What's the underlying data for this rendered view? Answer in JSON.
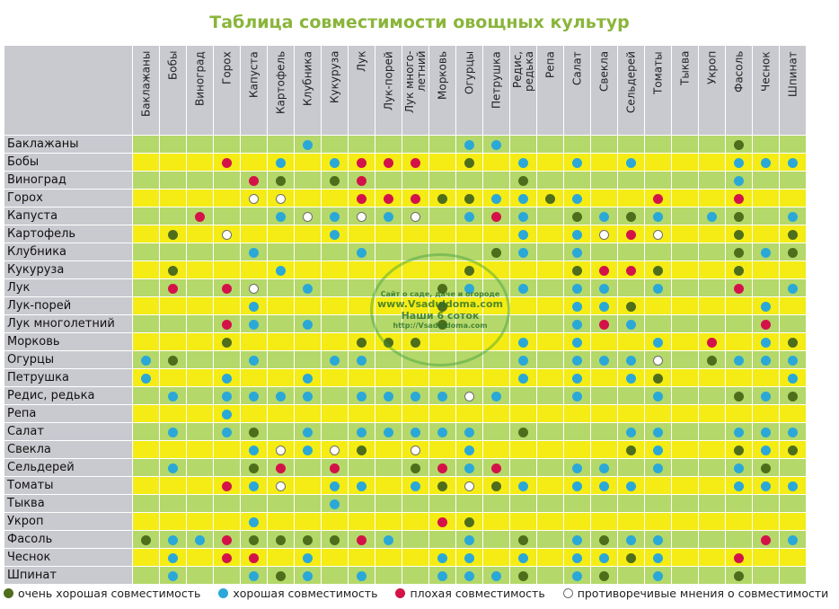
{
  "title": "Таблица совместимости овощных культур",
  "columns": [
    "Баклажаны",
    "Бобы",
    "Виноград",
    "Горох",
    "Капуста",
    "Картофель",
    "Клубника",
    "Кукуруза",
    "Лук",
    "Лук-порей",
    "Лук много-\nлетний",
    "Морковь",
    "Огурцы",
    "Петрушка",
    "Редис, редька",
    "Репа",
    "Салат",
    "Свекла",
    "Сельдерей",
    "Томаты",
    "Тыква",
    "Укроп",
    "Фасоль",
    "Чеснок",
    "Шпинат"
  ],
  "rows": [
    {
      "label": "Баклажаны",
      "cells": [
        "",
        "",
        "",
        "",
        "",
        "",
        "b",
        "",
        "",
        "",
        "",
        "",
        "b",
        "b",
        "",
        "",
        "",
        "",
        "",
        "",
        "",
        "",
        "g",
        "",
        ""
      ]
    },
    {
      "label": "Бобы",
      "cells": [
        "",
        "",
        "",
        "r",
        "",
        "b",
        "",
        "b",
        "r",
        "r",
        "r",
        "",
        "g",
        "",
        "b",
        "",
        "b",
        "",
        "b",
        "",
        "",
        "",
        "b",
        "b",
        "b"
      ]
    },
    {
      "label": "Виноград",
      "cells": [
        "",
        "",
        "",
        "",
        "r",
        "g",
        "",
        "g",
        "r",
        "",
        "",
        "",
        "",
        "",
        "g",
        "",
        "",
        "",
        "",
        "",
        "",
        "",
        "b",
        "",
        ""
      ]
    },
    {
      "label": "Горох",
      "cells": [
        "",
        "",
        "",
        "",
        "o",
        "o",
        "",
        "",
        "r",
        "r",
        "r",
        "g",
        "g",
        "b",
        "b",
        "g",
        "b",
        "",
        "",
        "r",
        "",
        "",
        "r",
        "",
        ""
      ]
    },
    {
      "label": "Капуста",
      "cells": [
        "",
        "",
        "r",
        "",
        "",
        "b",
        "o",
        "b",
        "o",
        "b",
        "o",
        "",
        "b",
        "r",
        "b",
        "",
        "g",
        "b",
        "g",
        "b",
        "",
        "b",
        "g",
        "",
        "b"
      ]
    },
    {
      "label": "Картофель",
      "cells": [
        "",
        "g",
        "",
        "o",
        "",
        "",
        "",
        "b",
        "",
        "",
        "",
        "",
        "",
        "",
        "b",
        "",
        "b",
        "o",
        "r",
        "o",
        "",
        "",
        "g",
        "",
        "g"
      ]
    },
    {
      "label": "Клубника",
      "cells": [
        "",
        "",
        "",
        "",
        "b",
        "",
        "",
        "",
        "b",
        "",
        "",
        "",
        "",
        "g",
        "b",
        "",
        "b",
        "",
        "",
        "",
        "",
        "",
        "g",
        "b",
        "g"
      ]
    },
    {
      "label": "Кукуруза",
      "cells": [
        "",
        "g",
        "",
        "",
        "",
        "b",
        "",
        "",
        "",
        "",
        "",
        "",
        "g",
        "",
        "",
        "",
        "g",
        "r",
        "r",
        "g",
        "",
        "",
        "g",
        "",
        ""
      ]
    },
    {
      "label": "Лук",
      "cells": [
        "",
        "r",
        "",
        "r",
        "o",
        "",
        "b",
        "",
        "",
        "",
        "",
        "g",
        "b",
        "",
        "b",
        "",
        "b",
        "b",
        "",
        "b",
        "",
        "",
        "r",
        "",
        "b"
      ]
    },
    {
      "label": "Лук-порей",
      "cells": [
        "",
        "",
        "",
        "",
        "b",
        "",
        "",
        "",
        "",
        "",
        "",
        "g",
        "",
        "",
        "",
        "",
        "b",
        "b",
        "g",
        "",
        "",
        "",
        "",
        "b",
        ""
      ]
    },
    {
      "label": "Лук многолетний",
      "cells": [
        "",
        "",
        "",
        "r",
        "b",
        "",
        "b",
        "",
        "",
        "",
        "",
        "g",
        "",
        "",
        "",
        "",
        "b",
        "r",
        "b",
        "",
        "",
        "",
        "",
        "r",
        ""
      ]
    },
    {
      "label": "Морковь",
      "cells": [
        "",
        "",
        "",
        "g",
        "",
        "",
        "",
        "",
        "g",
        "g",
        "g",
        "",
        "",
        "",
        "b",
        "",
        "b",
        "",
        "",
        "b",
        "",
        "r",
        "",
        "b",
        "g"
      ]
    },
    {
      "label": "Огурцы",
      "cells": [
        "b",
        "g",
        "",
        "",
        "b",
        "",
        "",
        "b",
        "b",
        "",
        "",
        "",
        "",
        "",
        "b",
        "",
        "b",
        "b",
        "b",
        "o",
        "",
        "g",
        "b",
        "b",
        "b"
      ]
    },
    {
      "label": "Петрушка",
      "cells": [
        "b",
        "",
        "",
        "b",
        "",
        "",
        "b",
        "",
        "",
        "",
        "",
        "",
        "",
        "",
        "b",
        "",
        "b",
        "",
        "b",
        "g",
        "",
        "",
        "",
        "",
        "b"
      ]
    },
    {
      "label": "Редис, редька",
      "cells": [
        "",
        "b",
        "",
        "b",
        "b",
        "b",
        "b",
        "",
        "b",
        "b",
        "b",
        "b",
        "o",
        "b",
        "",
        "",
        "b",
        "",
        "",
        "b",
        "",
        "",
        "g",
        "b",
        "g"
      ]
    },
    {
      "label": "Репа",
      "cells": [
        "",
        "",
        "",
        "b",
        "",
        "",
        "",
        "",
        "",
        "",
        "",
        "",
        "",
        "",
        "",
        "",
        "",
        "",
        "",
        "",
        "",
        "",
        "",
        "",
        ""
      ]
    },
    {
      "label": "Салат",
      "cells": [
        "",
        "b",
        "",
        "b",
        "g",
        "",
        "b",
        "",
        "b",
        "b",
        "b",
        "b",
        "b",
        "",
        "g",
        "",
        "",
        "",
        "b",
        "b",
        "",
        "",
        "b",
        "b",
        "b"
      ]
    },
    {
      "label": "Свекла",
      "cells": [
        "",
        "",
        "",
        "",
        "b",
        "o",
        "b",
        "o",
        "g",
        "",
        "o",
        "",
        "b",
        "",
        "",
        "",
        "",
        "",
        "g",
        "b",
        "",
        "",
        "g",
        "b",
        "g"
      ]
    },
    {
      "label": "Сельдерей",
      "cells": [
        "",
        "b",
        "",
        "",
        "g",
        "r",
        "",
        "r",
        "",
        "",
        "g",
        "r",
        "b",
        "r",
        "",
        "",
        "b",
        "b",
        "",
        "b",
        "",
        "",
        "b",
        "g",
        ""
      ]
    },
    {
      "label": "Томаты",
      "cells": [
        "",
        "",
        "",
        "r",
        "b",
        "o",
        "",
        "b",
        "b",
        "",
        "b",
        "g",
        "o",
        "g",
        "b",
        "",
        "b",
        "b",
        "b",
        "",
        "",
        "",
        "b",
        "b",
        "b"
      ]
    },
    {
      "label": "Тыква",
      "cells": [
        "",
        "",
        "",
        "",
        "",
        "",
        "",
        "b",
        "",
        "",
        "",
        "",
        "",
        "",
        "",
        "",
        "",
        "",
        "",
        "",
        "",
        "",
        "",
        "",
        ""
      ]
    },
    {
      "label": "Укроп",
      "cells": [
        "",
        "",
        "",
        "",
        "b",
        "",
        "",
        "",
        "",
        "",
        "",
        "r",
        "g",
        "",
        "",
        "",
        "",
        "",
        "",
        "",
        "",
        "",
        "",
        "",
        ""
      ]
    },
    {
      "label": "Фасоль",
      "cells": [
        "g",
        "b",
        "b",
        "r",
        "g",
        "g",
        "g",
        "g",
        "r",
        "b",
        "",
        "",
        "b",
        "",
        "g",
        "",
        "b",
        "g",
        "b",
        "b",
        "",
        "",
        "",
        "r",
        "b"
      ]
    },
    {
      "label": "Чеснок",
      "cells": [
        "",
        "b",
        "",
        "r",
        "r",
        "",
        "b",
        "",
        "",
        "",
        "",
        "b",
        "b",
        "",
        "b",
        "",
        "b",
        "b",
        "g",
        "b",
        "",
        "",
        "r",
        "",
        ""
      ]
    },
    {
      "label": "Шпинат",
      "cells": [
        "",
        "b",
        "",
        "",
        "b",
        "g",
        "b",
        "",
        "b",
        "",
        "",
        "b",
        "b",
        "b",
        "g",
        "",
        "b",
        "g",
        "",
        "b",
        "",
        "",
        "g",
        "",
        ""
      ]
    }
  ],
  "legend": [
    {
      "key": "g",
      "label": "очень хорошая совместимость",
      "icon": "dark-green-dot"
    },
    {
      "key": "b",
      "label": "хорошая совместимость",
      "icon": "blue-dot"
    },
    {
      "key": "r",
      "label": "плохая совместимость",
      "icon": "red-dot"
    },
    {
      "key": "o",
      "label": "противоречивые мнения о совместимости",
      "icon": "white-dot"
    }
  ],
  "watermark": {
    "line1": "Сайт о саде, даче и огороде",
    "line2": "www.Vsaduldoma.com",
    "line3": "Наши 6 соток",
    "line4": "http://Vsaduldoma.com"
  },
  "colors": {
    "title": "#8ab53b",
    "header_bg": "#c9c9d0",
    "row_green": "#b5d86a",
    "row_yellow": "#f4ec14",
    "very_good": "#4e6e1c",
    "good": "#2aa8d8",
    "bad": "#d4124a",
    "contradictory": "#ffffff"
  }
}
